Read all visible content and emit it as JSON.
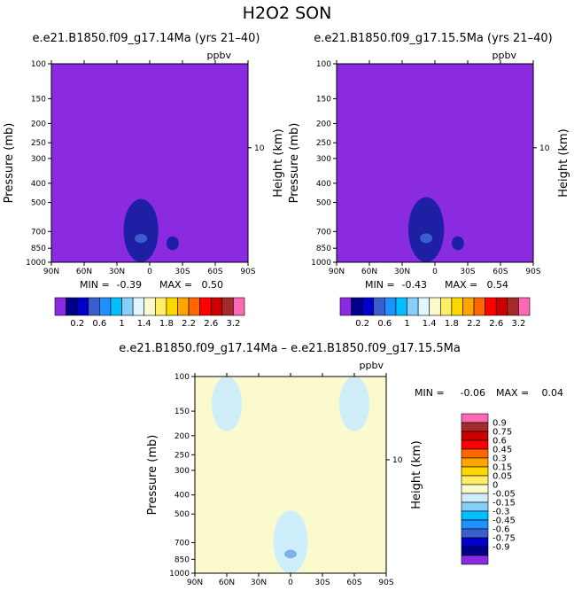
{
  "figure": {
    "title": "H2O2 SON"
  },
  "chart_data": [
    {
      "type": "heatmap",
      "title": "e.e21.B1850.f09_g17.14Ma (yrs 21–40)",
      "units": "ppbv",
      "xlabel": "",
      "ylabel": "Pressure (mb)",
      "ylabel_right": "Height (km)",
      "x_ticks": [
        "90N",
        "60N",
        "30N",
        "0",
        "30S",
        "60S",
        "90S"
      ],
      "x_range": [
        90,
        -90
      ],
      "y_ticks": [
        100,
        150,
        200,
        250,
        300,
        400,
        500,
        700,
        850,
        1000
      ],
      "y_range": [
        100,
        1000
      ],
      "y_scale": "log",
      "y_right_ticks": [
        "10"
      ],
      "background_color": "#8a2be2",
      "min_label": "MIN =",
      "min_value": "-0.39",
      "max_label": "MAX =",
      "max_value": "0.50",
      "features": [
        {
          "lat": 8,
          "p_top": 480,
          "p_bottom": 1000,
          "color": "#1f1fa6"
        },
        {
          "lat": 8,
          "p_top": 720,
          "p_bottom": 800,
          "color": "#3a5fcd"
        },
        {
          "lat": -21,
          "p_top": 740,
          "p_bottom": 870,
          "color": "#1f1fa6"
        }
      ]
    },
    {
      "type": "heatmap",
      "title": "e.e21.B1850.f09_g17.15.5Ma (yrs 21–40)",
      "units": "ppbv",
      "xlabel": "",
      "ylabel": "Pressure (mb)",
      "ylabel_right": "Height (km)",
      "x_ticks": [
        "90N",
        "60N",
        "30N",
        "0",
        "30S",
        "60S",
        "90S"
      ],
      "x_range": [
        90,
        -90
      ],
      "y_ticks": [
        100,
        150,
        200,
        250,
        300,
        400,
        500,
        700,
        850,
        1000
      ],
      "y_range": [
        100,
        1000
      ],
      "y_scale": "log",
      "y_right_ticks": [
        "10"
      ],
      "background_color": "#8a2be2",
      "min_label": "MIN =",
      "min_value": "-0.43",
      "max_label": "MAX =",
      "max_value": "0.54",
      "features": [
        {
          "lat": 8,
          "p_top": 470,
          "p_bottom": 1000,
          "color": "#1f1fa6"
        },
        {
          "lat": 8,
          "p_top": 715,
          "p_bottom": 800,
          "color": "#3a5fcd"
        },
        {
          "lat": -21,
          "p_top": 740,
          "p_bottom": 870,
          "color": "#1f1fa6"
        }
      ]
    },
    {
      "type": "heatmap",
      "title": "e.e21.B1850.f09_g17.14Ma – e.e21.B1850.f09_g17.15.5Ma",
      "units": "ppbv",
      "xlabel": "",
      "ylabel": "Pressure (mb)",
      "ylabel_right": "Height (km)",
      "x_ticks": [
        "90N",
        "60N",
        "30N",
        "0",
        "30S",
        "60S",
        "90S"
      ],
      "x_range": [
        90,
        -90
      ],
      "y_ticks": [
        100,
        150,
        200,
        250,
        300,
        400,
        500,
        700,
        850,
        1000
      ],
      "y_range": [
        100,
        1000
      ],
      "y_scale": "log",
      "y_right_ticks": [
        "10"
      ],
      "background_color": "#fafacc",
      "min_label": "MIN =",
      "min_value": "-0.06",
      "max_label": "MAX =",
      "max_value": "0.04",
      "features": [
        {
          "lat": 60,
          "p_top": 100,
          "p_bottom": 190,
          "color": "#cdeefa"
        },
        {
          "lat": -60,
          "p_top": 100,
          "p_bottom": 190,
          "color": "#cdeefa"
        },
        {
          "lat": 0,
          "p_top": 480,
          "p_bottom": 1000,
          "color": "#cdeefa"
        },
        {
          "lat": 0,
          "p_top": 760,
          "p_bottom": 840,
          "color": "#7fb2e5"
        }
      ]
    }
  ],
  "colorbar_top": {
    "colors": [
      "#8a2be2",
      "#00008b",
      "#0000cd",
      "#3a5fcd",
      "#1e90ff",
      "#00bfff",
      "#87cefa",
      "#e0f7ff",
      "#fafacc",
      "#ffee66",
      "#ffd700",
      "#ffa500",
      "#ff6600",
      "#ff0000",
      "#cc0000",
      "#a52a2a",
      "#ff69b4"
    ],
    "labels": [
      "0.2",
      "0.6",
      "1",
      "1.4",
      "1.8",
      "2.2",
      "2.6",
      "3.2"
    ]
  },
  "colorbar_diff": {
    "colors": [
      "#ff69b4",
      "#a52a2a",
      "#cc0000",
      "#ff0000",
      "#ff6600",
      "#ffa500",
      "#ffd700",
      "#ffee66",
      "#fafacc",
      "#cdeefa",
      "#87cefa",
      "#00bfff",
      "#1e90ff",
      "#3a5fcd",
      "#0000cd",
      "#00008b",
      "#8a2be2"
    ],
    "labels": [
      "0.9",
      "0.75",
      "0.6",
      "0.45",
      "0.3",
      "0.15",
      "0.05",
      "0",
      "-0.05",
      "-0.15",
      "-0.3",
      "-0.45",
      "-0.6",
      "-0.75",
      "-0.9"
    ]
  }
}
